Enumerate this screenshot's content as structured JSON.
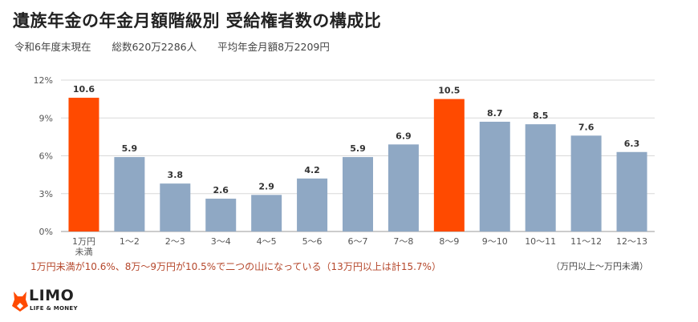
{
  "title": "遺族年金の年金月額階級別 受給権者数の構成比",
  "subtitle": {
    "period": "令和6年度末現在",
    "total": "総数620万2286人",
    "average": "平均年金月額8万2209円"
  },
  "note": "1万円未満が10.6%、8万〜9万円が10.5%で二つの山になっている（13万円以上は計15.7%）",
  "unit_note": "（万円以上〜万円未満）",
  "logo": {
    "name": "LIMO",
    "tagline": "LIFE & MONEY"
  },
  "colors": {
    "highlight": "#ff4a00",
    "normal": "#8fa8c4",
    "grid": "#d9d9d9"
  },
  "chart_data": {
    "type": "bar",
    "categories": [
      "1万円未満",
      "1〜2",
      "2〜3",
      "3〜4",
      "4〜5",
      "5〜6",
      "6〜7",
      "7〜8",
      "8〜9",
      "9〜10",
      "10〜11",
      "11〜12",
      "12〜13"
    ],
    "category_lines": [
      [
        "1万円",
        "未満"
      ],
      [
        "1〜2"
      ],
      [
        "2〜3"
      ],
      [
        "3〜4"
      ],
      [
        "4〜5"
      ],
      [
        "5〜6"
      ],
      [
        "6〜7"
      ],
      [
        "7〜8"
      ],
      [
        "8〜9"
      ],
      [
        "9〜10"
      ],
      [
        "10〜11"
      ],
      [
        "11〜12"
      ],
      [
        "12〜13"
      ]
    ],
    "values": [
      10.6,
      5.9,
      3.8,
      2.6,
      2.9,
      4.2,
      5.9,
      6.9,
      10.5,
      8.7,
      8.5,
      7.6,
      6.3
    ],
    "value_labels": [
      "10.6",
      "5.9",
      "3.8",
      "2.6",
      "2.9",
      "4.2",
      "5.9",
      "6.9",
      "10.5",
      "8.7",
      "8.5",
      "7.6",
      "6.3"
    ],
    "highlighted": [
      true,
      false,
      false,
      false,
      false,
      false,
      false,
      false,
      true,
      false,
      false,
      false,
      false
    ],
    "yticks": [
      0,
      3,
      6,
      9,
      12
    ],
    "ytick_labels": [
      "0%",
      "3%",
      "6%",
      "9%",
      "12%"
    ],
    "ylim": [
      0,
      12
    ],
    "grid": true
  }
}
